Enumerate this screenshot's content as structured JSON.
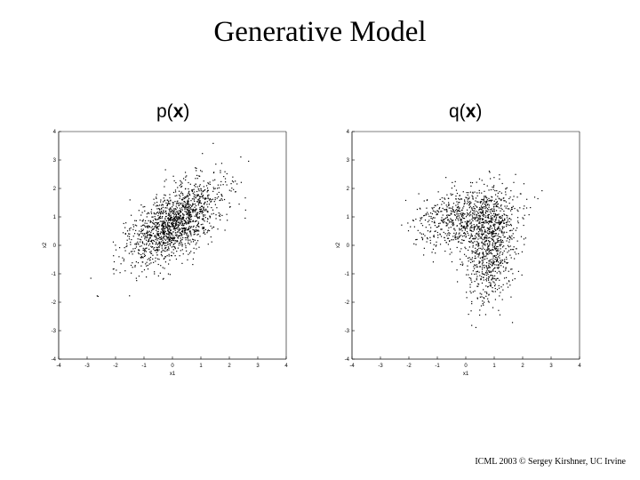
{
  "slide": {
    "title": "Generative Model",
    "footer": "ICML 2003 © Sergey Kirshner, UC Irvine"
  },
  "chart_data": [
    {
      "type": "scatter",
      "title": "p(x)",
      "title_prefix": "p(",
      "title_var": "x",
      "title_suffix": ")",
      "xlabel": "x1",
      "ylabel": "x2",
      "xlim": [
        -4,
        4
      ],
      "ylim": [
        -4,
        4
      ],
      "xticks": [
        -4,
        -3,
        -2,
        -1,
        0,
        1,
        2,
        3,
        4
      ],
      "yticks": [
        -4,
        -3,
        -2,
        -1,
        0,
        1,
        2,
        3,
        4
      ],
      "grid": false,
      "point_color": "#000000",
      "distribution": {
        "description": "single correlated Gaussian cloud",
        "n_points": 1500,
        "components": [
          {
            "weight": 1.0,
            "mean": [
              0.1,
              0.8
            ],
            "std": [
              0.85,
              0.75
            ],
            "corr": 0.6
          }
        ]
      }
    },
    {
      "type": "scatter",
      "title": "q(x)",
      "title_prefix": "q(",
      "title_var": "x",
      "title_suffix": ")",
      "xlabel": "x1",
      "ylabel": "x2",
      "xlim": [
        -4,
        4
      ],
      "ylim": [
        -4,
        4
      ],
      "xticks": [
        -4,
        -3,
        -2,
        -1,
        0,
        1,
        2,
        3,
        4
      ],
      "yticks": [
        -4,
        -3,
        -2,
        -1,
        0,
        1,
        2,
        3,
        4
      ],
      "grid": false,
      "point_color": "#000000",
      "distribution": {
        "description": "mixture of two Gaussian clusters",
        "n_points": 1500,
        "components": [
          {
            "weight": 0.5,
            "mean": [
              0.0,
              1.0
            ],
            "std": [
              0.9,
              0.55
            ],
            "corr": 0.3
          },
          {
            "weight": 0.5,
            "mean": [
              0.9,
              -0.1
            ],
            "std": [
              0.45,
              0.9
            ],
            "corr": 0.2
          }
        ]
      }
    }
  ]
}
